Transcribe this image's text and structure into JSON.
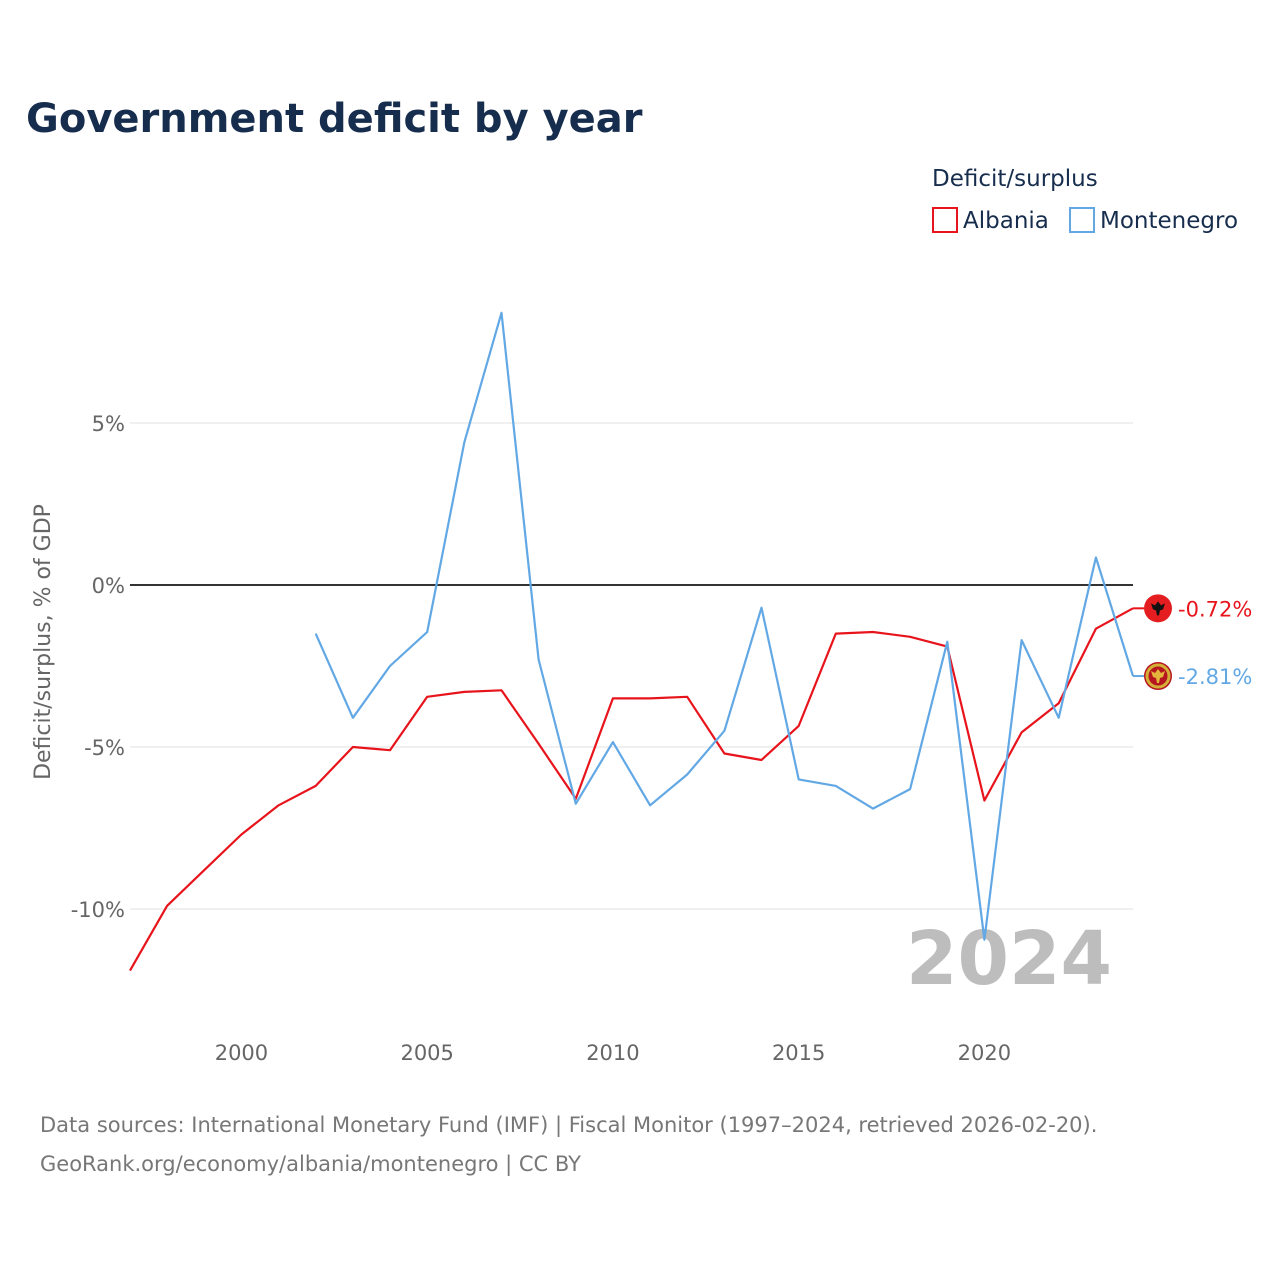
{
  "title": "Government deficit by year",
  "legend": {
    "title": "Deficit/surplus",
    "items": [
      {
        "label": "Albania",
        "color": "#e8141c"
      },
      {
        "label": "Montenegro",
        "color": "#62a8e5"
      }
    ]
  },
  "axis": {
    "y_title": "Deficit/surplus, % of GDP"
  },
  "watermark_year": "2024",
  "source": {
    "line1": "Data sources: International Monetary Fund (IMF) | Fiscal Monitor (1997–2024, retrieved 2026-02-20).",
    "line2": "GeoRank.org/economy/albania/montenegro | CC BY"
  },
  "end_labels": [
    {
      "series": "Albania",
      "text": "-0.72%",
      "color": "#e8141c",
      "icon": "albania-flag-icon"
    },
    {
      "series": "Montenegro",
      "text": "-2.81%",
      "color": "#62a8e5",
      "icon": "montenegro-flag-icon"
    }
  ],
  "chart_data": {
    "type": "line",
    "title": "Government deficit by year",
    "xlabel": "",
    "ylabel": "Deficit/surplus, % of GDP",
    "xlim": [
      1997,
      2024
    ],
    "ylim": [
      -12.5,
      8.5
    ],
    "x_ticks": [
      2000,
      2005,
      2010,
      2015,
      2020
    ],
    "x_tick_labels": [
      "2000",
      "2005",
      "2010",
      "2015",
      "2020"
    ],
    "y_ticks": [
      5,
      0,
      -5,
      -10
    ],
    "y_tick_labels": [
      "5%",
      "0%",
      "-5%",
      "-10%"
    ],
    "reference_line": 0,
    "legend_position": "top-right",
    "series": [
      {
        "name": "Albania",
        "color": "#e8141c",
        "x": [
          1997,
          1998,
          1999,
          2000,
          2001,
          2002,
          2003,
          2004,
          2005,
          2006,
          2007,
          2008,
          2009,
          2010,
          2011,
          2012,
          2013,
          2014,
          2015,
          2016,
          2017,
          2018,
          2019,
          2020,
          2021,
          2022,
          2023,
          2024
        ],
        "values": [
          -11.9,
          -9.9,
          -8.8,
          -7.7,
          -6.8,
          -6.2,
          -5.0,
          -5.1,
          -3.45,
          -3.3,
          -3.25,
          -4.9,
          -6.6,
          -3.5,
          -3.5,
          -3.45,
          -5.2,
          -5.4,
          -4.35,
          -1.5,
          -1.45,
          -1.6,
          -1.9,
          -6.65,
          -4.55,
          -3.65,
          -1.35,
          -0.72
        ]
      },
      {
        "name": "Montenegro",
        "color": "#62a8e5",
        "x": [
          2002,
          2003,
          2004,
          2005,
          2006,
          2007,
          2008,
          2009,
          2010,
          2011,
          2012,
          2013,
          2014,
          2015,
          2016,
          2017,
          2018,
          2019,
          2020,
          2021,
          2022,
          2023,
          2024
        ],
        "values": [
          -1.5,
          -4.1,
          -2.5,
          -1.45,
          4.4,
          8.4,
          -2.3,
          -6.75,
          -4.85,
          -6.8,
          -5.85,
          -4.5,
          -0.7,
          -6.0,
          -6.2,
          -6.9,
          -6.3,
          -1.75,
          -10.95,
          -1.7,
          -4.1,
          0.85,
          -2.81
        ]
      }
    ]
  }
}
